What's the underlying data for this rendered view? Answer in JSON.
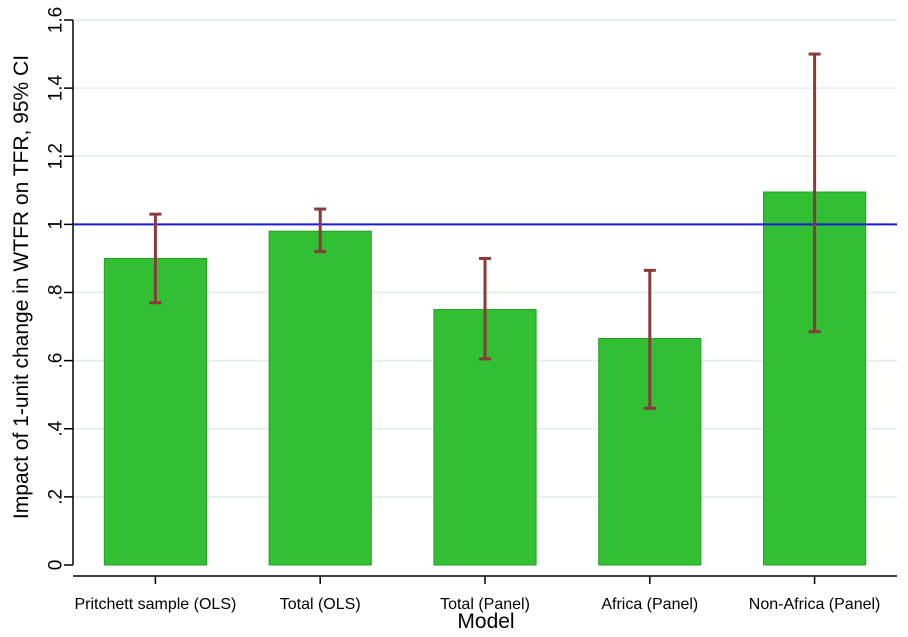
{
  "chart_data": {
    "type": "bar",
    "title": "",
    "xlabel": "Model",
    "ylabel": "Impact of 1-unit change in WTFR on TFR, 95% CI",
    "ylim": [
      0,
      1.6
    ],
    "yticks": [
      0,
      0.2,
      0.4,
      0.6,
      0.8,
      1,
      1.2,
      1.4,
      1.6
    ],
    "ytick_labels": [
      "0",
      ".2",
      ".4",
      ".6",
      ".8",
      "1",
      "1.2",
      "1.4",
      "1.6"
    ],
    "categories": [
      "Pritchett sample (OLS)",
      "Total (OLS)",
      "Total (Panel)",
      "Africa (Panel)",
      "Non-Africa (Panel)"
    ],
    "values": [
      0.9,
      0.98,
      0.75,
      0.665,
      1.095
    ],
    "ci_low": [
      0.77,
      0.92,
      0.605,
      0.46,
      0.685
    ],
    "ci_high": [
      1.03,
      1.045,
      0.9,
      0.865,
      1.5
    ],
    "reference_line": 1,
    "grid": true,
    "colors": {
      "bar": "#33bf33",
      "bar_edge": "#24a024",
      "ci": "#8b3a3a",
      "reference": "#1a1adb",
      "grid": "#e3ebee"
    }
  }
}
